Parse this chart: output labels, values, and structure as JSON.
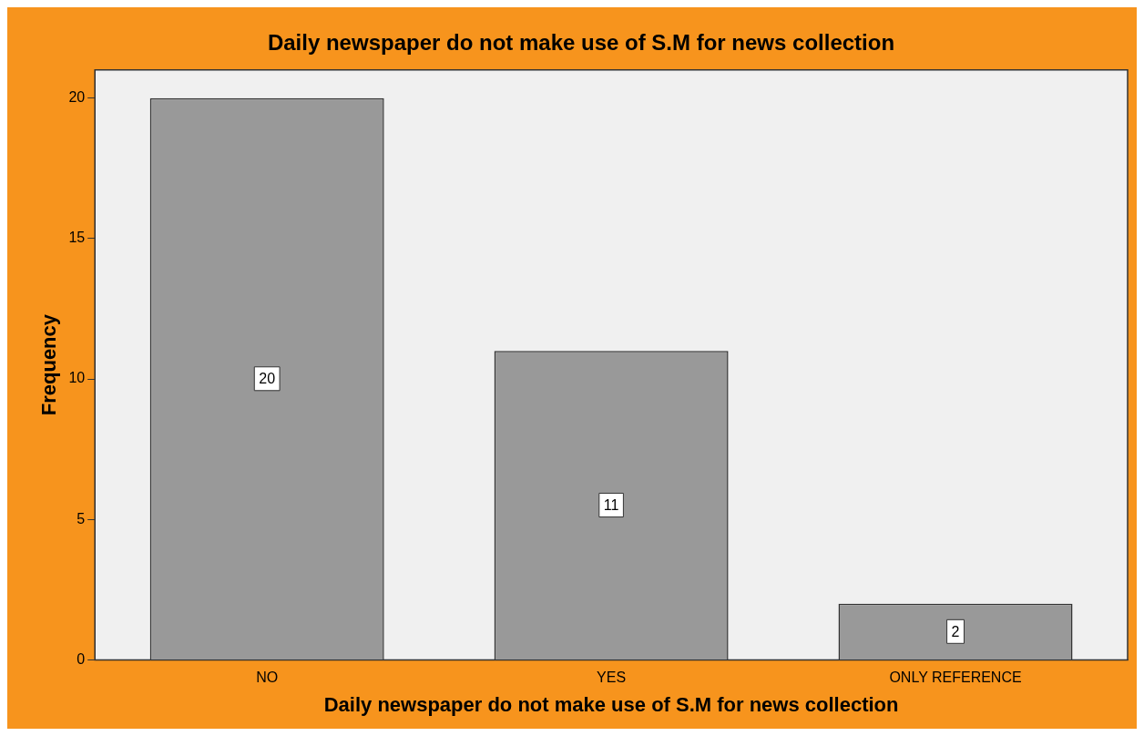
{
  "chart_data": {
    "type": "bar",
    "title": "Daily newspaper do not make use of S.M for news collection",
    "xlabel": "Daily newspaper do not make use of S.M for news collection",
    "ylabel": "Frequency",
    "categories": [
      "NO",
      "YES",
      "ONLY REFERENCE"
    ],
    "values": [
      20,
      11,
      2
    ],
    "color": "#999999",
    "ylim": [
      0,
      21
    ],
    "yticks": [
      0,
      5,
      10,
      15,
      20
    ],
    "grid": false,
    "legend": false,
    "data_labels": true
  }
}
